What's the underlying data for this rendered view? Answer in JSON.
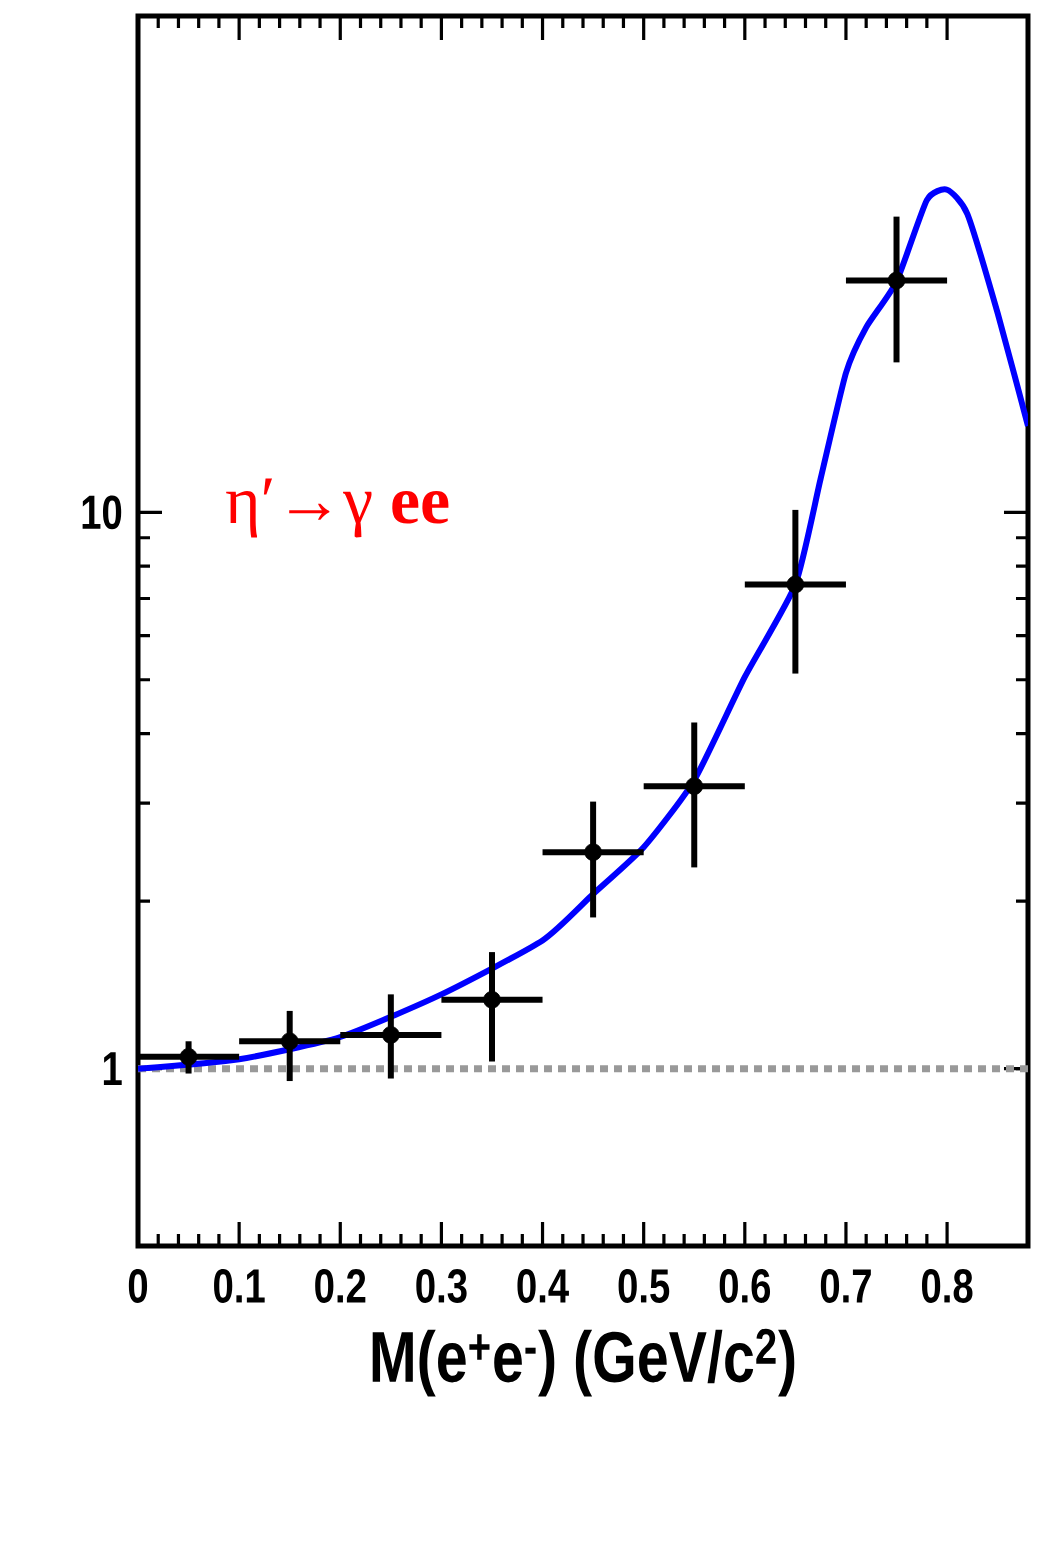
{
  "chart_data": {
    "type": "scatter",
    "xlabel": "M(e$^{+}$e$^{-}$) (GeV/c$^{2}$)",
    "annotations": [
      "η′→γ  **ee**"
    ],
    "log": "y",
    "grid": false,
    "xlim": [
      0,
      0.88
    ],
    "ylim": [
      0.48,
      78
    ],
    "xticks": [
      0,
      0.1,
      0.2,
      0.3,
      0.4,
      0.5,
      0.6,
      0.7,
      0.8
    ],
    "yticks": [
      1,
      10
    ],
    "x": [
      0.05,
      0.15,
      0.25,
      0.35,
      0.45,
      0.55,
      0.65,
      0.75
    ],
    "series": [
      {
        "color": "#000000",
        "marker": "circle",
        "values": [
          1.05,
          1.12,
          1.15,
          1.33,
          2.45,
          3.22,
          7.42,
          26.1
        ],
        "errors": [
          [
            0.98,
            1.12
          ],
          [
            0.95,
            1.27
          ],
          [
            0.96,
            1.36
          ],
          [
            1.03,
            1.62
          ],
          [
            1.87,
            3.02
          ],
          [
            2.3,
            4.19
          ],
          [
            5.13,
            10.1
          ],
          [
            18.6,
            34.0
          ]
        ],
        "xerrors": [
          0.05,
          0.05,
          0.05,
          0.05,
          0.05,
          0.05,
          0.05,
          0.05
        ]
      },
      {
        "type": "line",
        "marker": "none",
        "color": "#0000ff",
        "line_style": "solid",
        "x": [
          0,
          0.1,
          0.2,
          0.3,
          0.4,
          0.45,
          0.5,
          0.55,
          0.6,
          0.65,
          0.675,
          0.7,
          0.72,
          0.75,
          0.78,
          0.8,
          0.82,
          0.85,
          0.88
        ],
        "values": [
          1.0,
          1.04,
          1.14,
          1.36,
          1.7,
          2.06,
          2.5,
          3.3,
          5.06,
          7.42,
          11.5,
          17.8,
          21.5,
          26.0,
          36.4,
          38.0,
          34.4,
          22.8,
          14.3
        ]
      }
    ],
    "ref_lines": [
      {
        "axis": "y",
        "value": 1,
        "color": "#999999",
        "line_style": "dotted"
      }
    ]
  }
}
